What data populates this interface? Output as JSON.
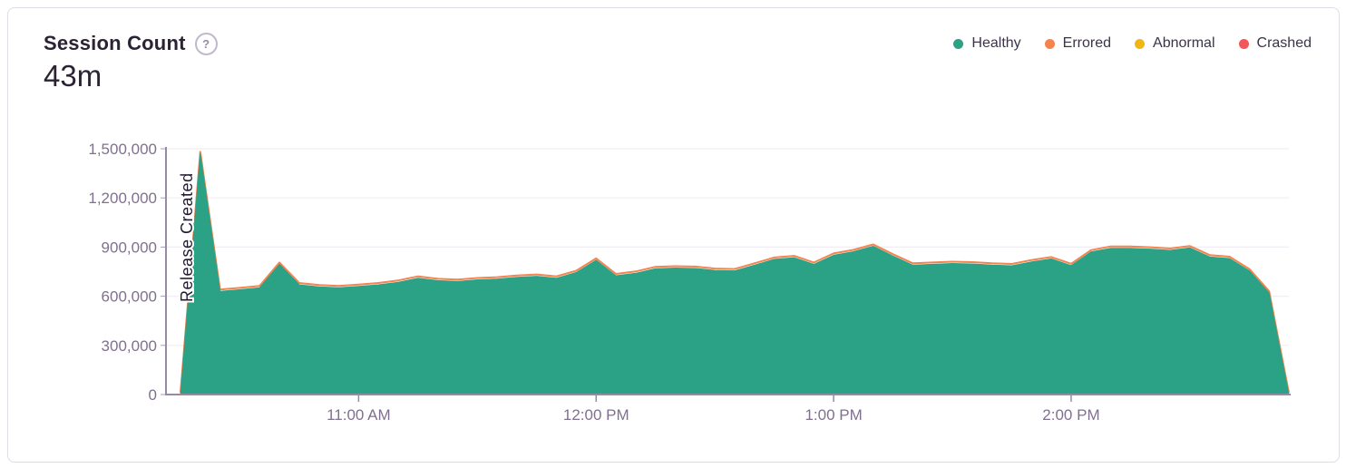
{
  "card": {
    "title": "Session Count",
    "help_text": "?",
    "total": "43m"
  },
  "legend": {
    "items": [
      {
        "label": "Healthy",
        "color": "#2ba185"
      },
      {
        "label": "Errored",
        "color": "#f4834e"
      },
      {
        "label": "Abnormal",
        "color": "#f0b712"
      },
      {
        "label": "Crashed",
        "color": "#f2555a"
      }
    ]
  },
  "colors": {
    "title_text": "#2b2233",
    "axis_text": "#80708f",
    "axis_line": "#958ba7",
    "gridline": "#f0eef4",
    "healthy_fill": "#2ba185",
    "errored_edge": "#f4834e",
    "card_border": "#e0dce6"
  },
  "chart_data": {
    "type": "area",
    "title": "Session Count",
    "xlabel": "",
    "ylabel": "",
    "ylim": [
      0,
      1500000
    ],
    "grid": true,
    "legend_position": "top-right",
    "y_ticks": [
      0,
      300000,
      600000,
      900000,
      1200000,
      1500000
    ],
    "y_tick_labels": [
      "0",
      "300,000",
      "600,000",
      "900,000",
      "1,200,000",
      "1,500,000"
    ],
    "x_tick_labels": [
      "11:00 AM",
      "12:00 PM",
      "1:00 PM",
      "2:00 PM"
    ],
    "annotation": {
      "label": "Release Created",
      "x": "10:15 AM"
    },
    "x": [
      "10:15 AM",
      "10:20 AM",
      "10:25 AM",
      "10:30 AM",
      "10:35 AM",
      "10:40 AM",
      "10:45 AM",
      "10:50 AM",
      "10:55 AM",
      "11:00 AM",
      "11:05 AM",
      "11:10 AM",
      "11:15 AM",
      "11:20 AM",
      "11:25 AM",
      "11:30 AM",
      "11:35 AM",
      "11:40 AM",
      "11:45 AM",
      "11:50 AM",
      "11:55 AM",
      "12:00 PM",
      "12:05 PM",
      "12:10 PM",
      "12:15 PM",
      "12:20 PM",
      "12:25 PM",
      "12:30 PM",
      "12:35 PM",
      "12:40 PM",
      "12:45 PM",
      "12:50 PM",
      "12:55 PM",
      "1:00 PM",
      "1:05 PM",
      "1:10 PM",
      "1:15 PM",
      "1:20 PM",
      "1:25 PM",
      "1:30 PM",
      "1:35 PM",
      "1:40 PM",
      "1:45 PM",
      "1:50 PM",
      "1:55 PM",
      "2:00 PM",
      "2:05 PM",
      "2:10 PM",
      "2:15 PM",
      "2:20 PM",
      "2:25 PM",
      "2:30 PM",
      "2:35 PM",
      "2:40 PM",
      "2:45 PM",
      "2:50 PM",
      "2:55 PM"
    ],
    "series": [
      {
        "name": "Healthy",
        "color": "#2ba185",
        "values": [
          0,
          1470000,
          630000,
          640000,
          652000,
          795000,
          670000,
          657000,
          652000,
          660000,
          670000,
          685000,
          710000,
          695000,
          690000,
          700000,
          705000,
          715000,
          722000,
          710000,
          745000,
          820000,
          725000,
          740000,
          768000,
          772000,
          770000,
          758000,
          755000,
          790000,
          825000,
          835000,
          795000,
          850000,
          872000,
          905000,
          845000,
          790000,
          795000,
          800000,
          797000,
          790000,
          786000,
          810000,
          828000,
          787000,
          870000,
          893000,
          892000,
          888000,
          880000,
          895000,
          840000,
          830000,
          755000,
          620000,
          0
        ]
      }
    ],
    "overlay_series": {
      "name": "Errored",
      "color": "#f4834e",
      "note": "thin stacked edge visible just above Healthy area"
    }
  }
}
